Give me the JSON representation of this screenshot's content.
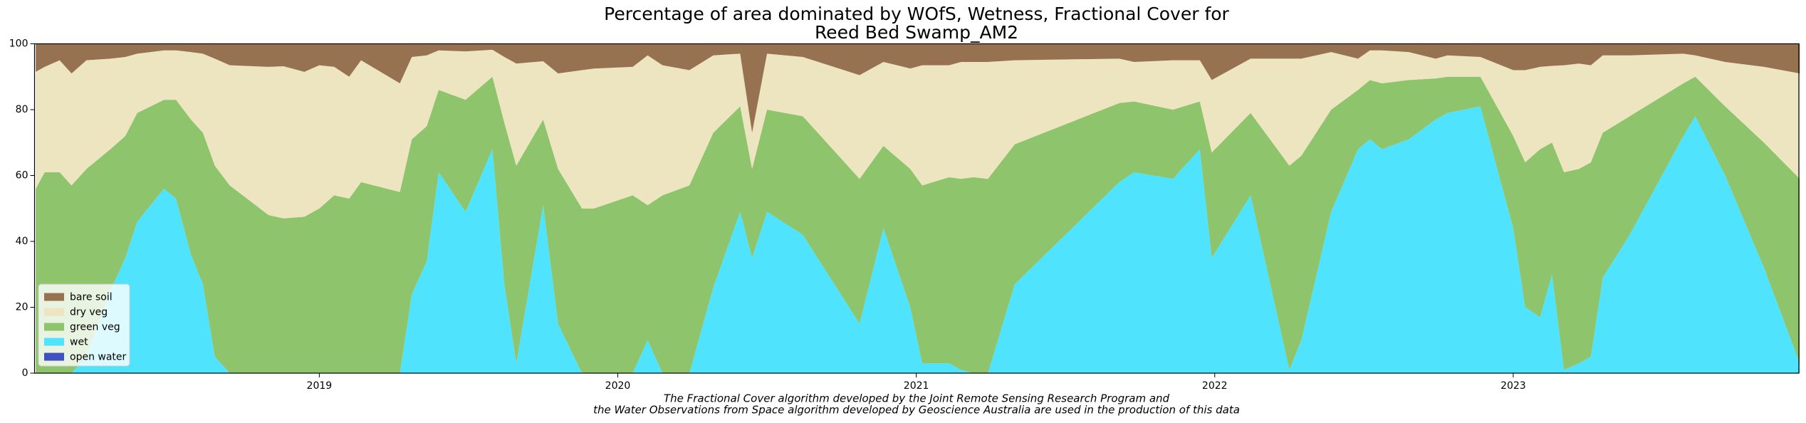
{
  "chart_data": {
    "type": "stackedarea",
    "title": [
      "Percentage of area dominated by WOfS, Wetness, Fractional Cover for",
      "Reed Bed Swamp_AM2"
    ],
    "annotations": [
      "The Fractional Cover algorithm developed by the Joint Remote Sensing Research Program and",
      "the Water Observations from Space algorithm developed by Geoscience Australia are used in the production of this data"
    ],
    "x": [
      2018.05,
      2018.08,
      2018.13,
      2018.17,
      2018.22,
      2018.3,
      2018.35,
      2018.39,
      2018.48,
      2018.52,
      2018.57,
      2018.61,
      2018.65,
      2018.7,
      2018.83,
      2018.88,
      2018.95,
      2019.0,
      2019.05,
      2019.1,
      2019.14,
      2019.27,
      2019.31,
      2019.36,
      2019.4,
      2019.49,
      2019.58,
      2019.62,
      2019.66,
      2019.75,
      2019.8,
      2019.88,
      2019.92,
      2020.05,
      2020.1,
      2020.15,
      2020.24,
      2020.32,
      2020.41,
      2020.45,
      2020.5,
      2020.62,
      2020.81,
      2020.89,
      2020.98,
      2021.02,
      2021.11,
      2021.15,
      2021.19,
      2021.24,
      2021.33,
      2021.68,
      2021.73,
      2021.86,
      2021.95,
      2021.99,
      2022.12,
      2022.25,
      2022.29,
      2022.39,
      2022.48,
      2022.52,
      2022.56,
      2022.65,
      2022.74,
      2022.78,
      2022.89,
      2023.0,
      2023.04,
      2023.09,
      2023.13,
      2023.17,
      2023.22,
      2023.26,
      2023.3,
      2023.39,
      2023.57,
      2023.61,
      2023.71,
      2023.84,
      2023.96
    ],
    "series": [
      {
        "name": "open water",
        "color": "#4050c0",
        "values": [
          0,
          0,
          0,
          0,
          0,
          0,
          0,
          0,
          0,
          0,
          0,
          0,
          0,
          0,
          0,
          0,
          0,
          0,
          0,
          0,
          0,
          0,
          0,
          0,
          0,
          0,
          0,
          0,
          0,
          0,
          0,
          0,
          0,
          0,
          0,
          0,
          0,
          0,
          0,
          0,
          0,
          0,
          0,
          0,
          0,
          0,
          0,
          0,
          0,
          0,
          0,
          0,
          0,
          0,
          0,
          0,
          0,
          0,
          0,
          0,
          0,
          0,
          0,
          0,
          0,
          0,
          0,
          0,
          0,
          0,
          0,
          0,
          0,
          0,
          0,
          0,
          0,
          0,
          0,
          0,
          0
        ]
      },
      {
        "name": "wet",
        "color": "#4fe3fd",
        "values": [
          0,
          0,
          0,
          0,
          5,
          25,
          35,
          46,
          56,
          53,
          36,
          27,
          5,
          0,
          0,
          0,
          0,
          0,
          0,
          0,
          0,
          0,
          24,
          34,
          61,
          49,
          68,
          27,
          3,
          51,
          15,
          0,
          0,
          0,
          10,
          0,
          0,
          26,
          49,
          35,
          49,
          42,
          15,
          44,
          20,
          3,
          3,
          1,
          0,
          0,
          27,
          58,
          61,
          59,
          68,
          35,
          54,
          1,
          10,
          49,
          68,
          71,
          68,
          71,
          77,
          79,
          81,
          44,
          20,
          17,
          30,
          1,
          3,
          5,
          29,
          42,
          72,
          78,
          60,
          32,
          3
        ]
      },
      {
        "name": "green veg",
        "color": "#8dc46c",
        "values": [
          56,
          61,
          61,
          57,
          57,
          43,
          37,
          33,
          27,
          30,
          41,
          46,
          58,
          57,
          48,
          47,
          47.5,
          50,
          54,
          53,
          58,
          55,
          47,
          41,
          25,
          34,
          22,
          49,
          60,
          26,
          47,
          50,
          50,
          54,
          41,
          54,
          57,
          47,
          32,
          27,
          31,
          36,
          44,
          25,
          42,
          54,
          56.5,
          58,
          59.5,
          59,
          42.5,
          24,
          21.5,
          21,
          14.5,
          32,
          25,
          62,
          56,
          31,
          18,
          18,
          20,
          18,
          12.5,
          11,
          9,
          28,
          44,
          51,
          40,
          60,
          59,
          59,
          44,
          36,
          16,
          12,
          21,
          38,
          56
        ]
      },
      {
        "name": "dry veg",
        "color": "#ede4c0",
        "values": [
          35.5,
          32,
          34,
          34,
          33,
          27.5,
          24,
          18,
          15,
          15,
          20.5,
          24,
          32.5,
          36.5,
          45,
          46.2,
          44,
          43.5,
          39,
          37,
          37,
          33,
          25,
          21.5,
          12,
          14.7,
          8.2,
          20,
          31,
          17.7,
          29,
          42,
          42.5,
          39,
          45.5,
          39.5,
          35,
          23.5,
          16,
          11,
          17,
          18,
          31.5,
          25.5,
          30.5,
          36.5,
          34,
          35.5,
          35,
          35.5,
          25.5,
          13.5,
          12,
          15,
          12.5,
          22,
          16.5,
          32.5,
          29.5,
          17.5,
          9.5,
          9,
          10,
          8.5,
          6,
          6.5,
          6,
          20,
          28,
          25,
          23.3,
          32.5,
          32,
          29.5,
          23.5,
          18.5,
          9,
          6.5,
          13.5,
          23,
          32
        ]
      },
      {
        "name": "bare soil",
        "color": "#977250",
        "values": [
          8.5,
          7,
          5,
          9,
          5,
          4.5,
          4,
          3,
          2,
          2,
          2.5,
          3,
          4.5,
          6.5,
          7,
          6.8,
          8.5,
          6.5,
          7,
          10,
          5,
          12,
          4,
          3.5,
          2,
          2.3,
          1.8,
          4,
          6,
          5.3,
          9,
          8,
          7.5,
          7,
          3.5,
          6.5,
          8,
          3.5,
          3,
          27,
          3,
          4,
          9.5,
          5.5,
          7.5,
          6.5,
          6.5,
          5.5,
          5.5,
          5.5,
          5,
          4.5,
          5.5,
          5,
          5,
          11,
          4.5,
          4.5,
          4.5,
          2.5,
          4.5,
          2,
          2,
          2.5,
          4.5,
          3.5,
          4,
          8,
          8,
          7,
          6.7,
          6.5,
          6,
          6.5,
          3.5,
          3.5,
          3,
          3.5,
          5.5,
          7,
          9
        ]
      }
    ],
    "xlim": [
      2018.046,
      2023.957
    ],
    "xticks": [
      2019,
      2020,
      2021,
      2022,
      2023
    ],
    "ylim": [
      0,
      100
    ],
    "yticks": [
      0,
      20,
      40,
      60,
      80,
      100
    ],
    "legend": "lower left"
  }
}
